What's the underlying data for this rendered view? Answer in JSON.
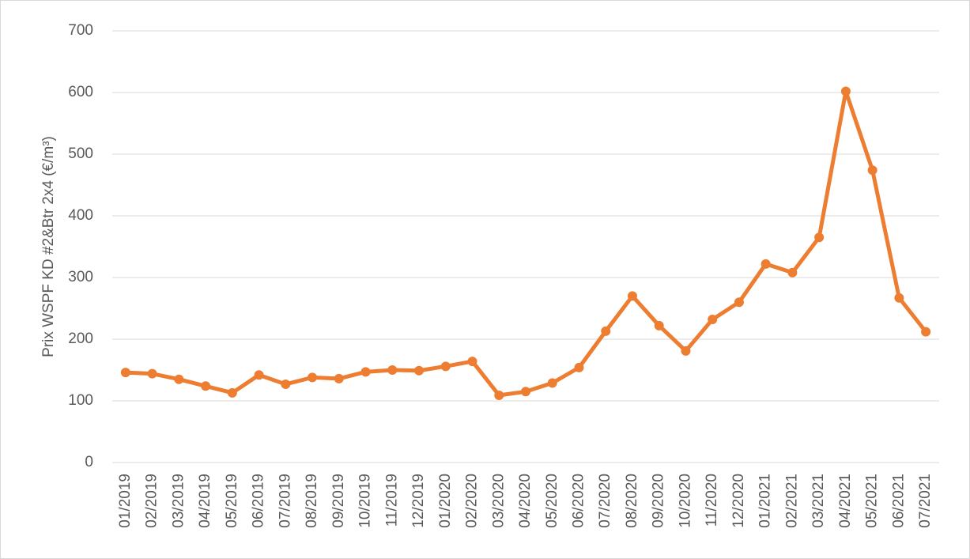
{
  "chart_data": {
    "type": "line",
    "y_label": "Prix WSPF KD #2&Btr 2x4 (€/m³)",
    "categories": [
      "01/2019",
      "02/2019",
      "03/2019",
      "04/2019",
      "05/2019",
      "06/2019",
      "07/2019",
      "08/2019",
      "09/2019",
      "10/2019",
      "11/2019",
      "12/2019",
      "01/2020",
      "02/2020",
      "03/2020",
      "04/2020",
      "05/2020",
      "06/2020",
      "07/2020",
      "08/2020",
      "09/2020",
      "10/2020",
      "11/2020",
      "12/2020",
      "01/2021",
      "02/2021",
      "03/2021",
      "04/2021",
      "05/2021",
      "06/2021",
      "07/2021"
    ],
    "values": [
      146,
      144,
      135,
      124,
      113,
      142,
      127,
      138,
      136,
      147,
      150,
      149,
      156,
      164,
      109,
      115,
      129,
      154,
      213,
      270,
      222,
      181,
      232,
      260,
      322,
      308,
      365,
      602,
      474,
      267,
      212
    ],
    "color": "#ed7d31",
    "ylim": [
      0,
      700
    ],
    "yticks": [
      0,
      100,
      200,
      300,
      400,
      500,
      600,
      700
    ],
    "grid": true
  }
}
